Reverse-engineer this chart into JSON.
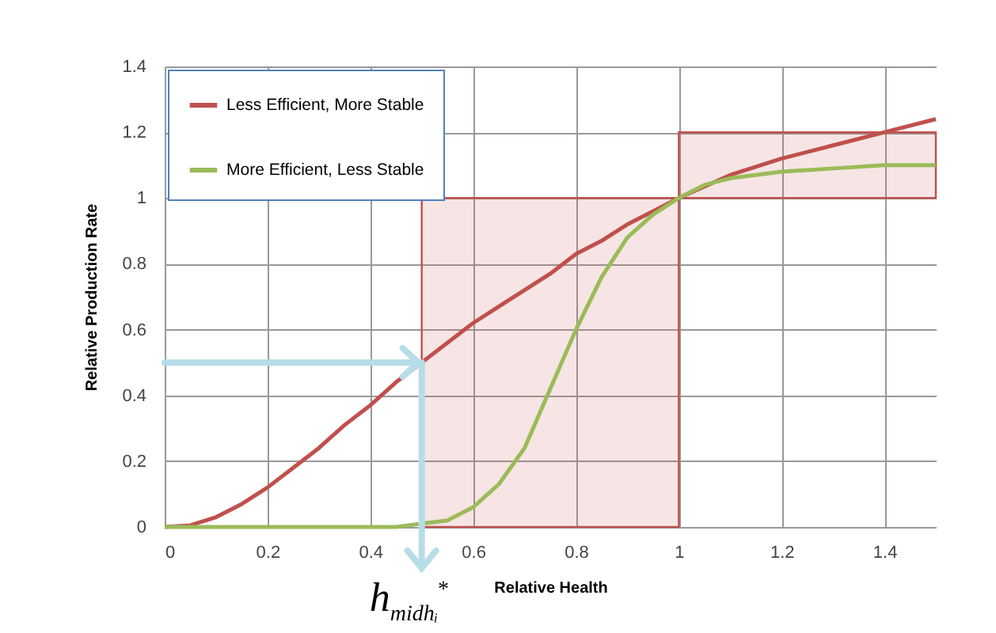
{
  "chart_data": {
    "type": "line",
    "xlabel": "Relative Health",
    "ylabel": "Relative Production Rate",
    "xlim": [
      0,
      1.5
    ],
    "ylim": [
      0,
      1.4
    ],
    "xticks": [
      0,
      0.2,
      0.4,
      0.6,
      0.8,
      1,
      1.2,
      1.4
    ],
    "yticks": [
      0,
      0.2,
      0.4,
      0.6,
      0.8,
      1,
      1.2,
      1.4
    ],
    "grid": true,
    "legend": "top left",
    "annotations": [
      {
        "text": "h$_{midhᵢ}$$^{*}$",
        "x": 0.5,
        "y": 0.5
      }
    ],
    "series": [
      {
        "type": "area",
        "color": "#c0504d",
        "x": [
          0.5,
          1
        ],
        "values": [
          1,
          1
        ]
      },
      {
        "type": "line",
        "color": "#c0504d",
        "x": [
          1,
          1.5
        ],
        "values": [
          1.2,
          1.2
        ],
        "lower": [
          1,
          1
        ],
        "upper": [
          1.2,
          1.2
        ]
      },
      {
        "name": "Less Efficient, More Stable",
        "color": "#c0504d",
        "x": [
          0,
          0.05,
          0.1,
          0.15,
          0.2,
          0.25,
          0.3,
          0.35,
          0.4,
          0.45,
          0.5,
          0.55,
          0.6,
          0.65,
          0.7,
          0.75,
          0.8,
          0.85,
          0.9,
          0.95,
          1,
          1.1,
          1.2,
          1.3,
          1.4,
          1.5
        ],
        "values": [
          0,
          0.005,
          0.03,
          0.07,
          0.12,
          0.18,
          0.24,
          0.31,
          0.37,
          0.44,
          0.5,
          0.56,
          0.62,
          0.67,
          0.72,
          0.77,
          0.83,
          0.87,
          0.92,
          0.96,
          1,
          1.07,
          1.12,
          1.16,
          1.2,
          1.24
        ]
      },
      {
        "name": "More Efficient, Less Stable",
        "color": "#9bbb59",
        "x": [
          0,
          0.1,
          0.2,
          0.3,
          0.4,
          0.45,
          0.5,
          0.55,
          0.6,
          0.65,
          0.7,
          0.75,
          0.8,
          0.85,
          0.9,
          0.95,
          1,
          1.05,
          1.1,
          1.2,
          1.3,
          1.4,
          1.5
        ],
        "values": [
          0,
          0,
          0,
          0,
          0,
          0,
          0.01,
          0.02,
          0.06,
          0.13,
          0.24,
          0.42,
          0.6,
          0.76,
          0.88,
          0.95,
          1,
          1.04,
          1.06,
          1.08,
          1.09,
          1.1,
          1.1
        ]
      }
    ]
  }
}
